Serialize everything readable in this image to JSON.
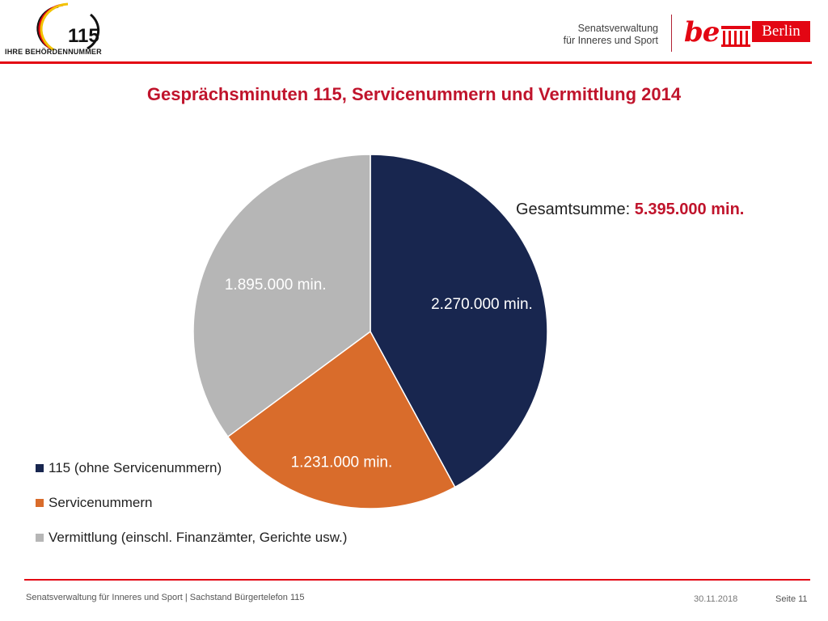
{
  "header": {
    "logo_115_text": "115",
    "logo_115_caption": "IHRE BEHÖRDENNUMMER",
    "senat_line1": "Senatsverwaltung",
    "senat_line2": "für Inneres und Sport",
    "be_text": "be",
    "berlin_text": "Berlin"
  },
  "title": "Gesprächsminuten 115, Servicenummern und Vermittlung 2014",
  "total": {
    "label": "Gesamtsumme: ",
    "value": "5.395.000 min."
  },
  "chart_data": {
    "type": "pie",
    "title": "Gesprächsminuten 115, Servicenummern und Vermittlung 2014",
    "slices": [
      {
        "name": "115 (ohne Servicenummern)",
        "value": 2270000,
        "label": "2.270.000 min.",
        "color": "#18264f"
      },
      {
        "name": "Servicenummern",
        "value": 1231000,
        "label": "1.231.000 min.",
        "color": "#d96c2b"
      },
      {
        "name": "Vermittlung (einschl. Finanzämter, Gerichte usw.)",
        "value": 1895000,
        "label": "1.895.000 min.",
        "color": "#b6b6b6"
      }
    ],
    "legend_position": "bottom-left"
  },
  "legend": {
    "items": [
      {
        "label": "115 (ohne Servicenummern)",
        "color": "#18264f"
      },
      {
        "label": "Servicenummern",
        "color": "#d96c2b"
      },
      {
        "label": "Vermittlung (einschl. Finanzämter, Gerichte usw.)",
        "color": "#b6b6b6"
      }
    ]
  },
  "footer": {
    "left": "Senatsverwaltung für Inneres und Sport | Sachstand Bürgertelefon 115",
    "date": "30.11.2018",
    "page": "Seite 11"
  },
  "colors": {
    "accent_red": "#e30613",
    "title_red": "#c0142c"
  }
}
